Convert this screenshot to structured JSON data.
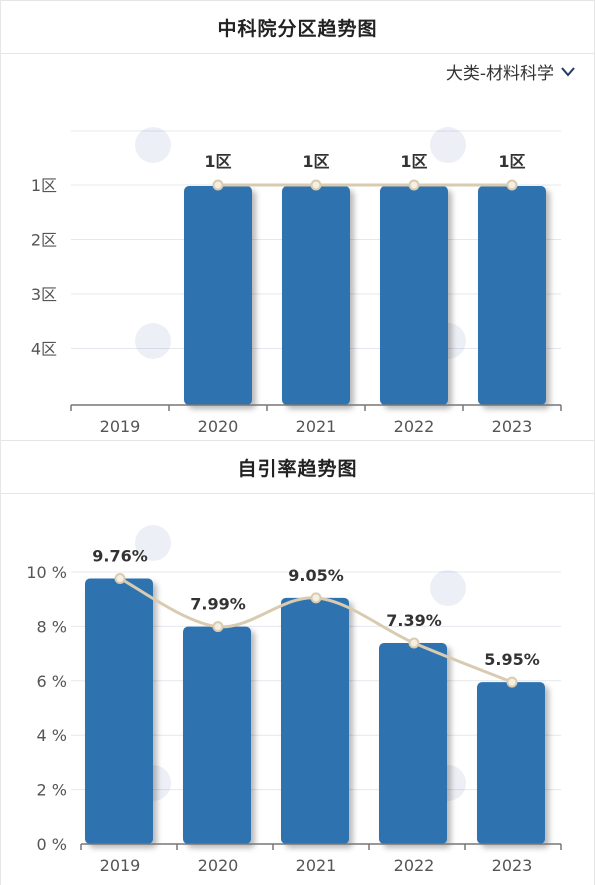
{
  "panels": {
    "zone": {
      "title": "中科院分区趋势图",
      "dropdown_label": "大类-材料科学"
    },
    "selfcite": {
      "title": "自引率趋势图"
    }
  },
  "colors": {
    "bar": "#2e73b0",
    "line": "#d9cbb0",
    "grid": "#e4e8ee"
  },
  "chart_data": [
    {
      "type": "bar",
      "title": "中科院分区趋势图",
      "categories": [
        "2019",
        "2020",
        "2021",
        "2022",
        "2023"
      ],
      "y_ticks": [
        "1区",
        "2区",
        "3区",
        "4区"
      ],
      "values": [
        null,
        1,
        1,
        1,
        1
      ],
      "data_labels": [
        "",
        "1区",
        "1区",
        "1区",
        "1区"
      ],
      "overlay_line": true,
      "y_inverted": true
    },
    {
      "type": "bar",
      "title": "自引率趋势图",
      "categories": [
        "2019",
        "2020",
        "2021",
        "2022",
        "2023"
      ],
      "y_ticks": [
        "0 %",
        "2 %",
        "4 %",
        "6 %",
        "8 %",
        "10 %"
      ],
      "values": [
        9.76,
        7.99,
        9.05,
        7.39,
        5.95
      ],
      "data_labels": [
        "9.76%",
        "7.99%",
        "9.05%",
        "7.39%",
        "5.95%"
      ],
      "ylim": [
        0,
        10
      ],
      "overlay_line": true
    }
  ]
}
